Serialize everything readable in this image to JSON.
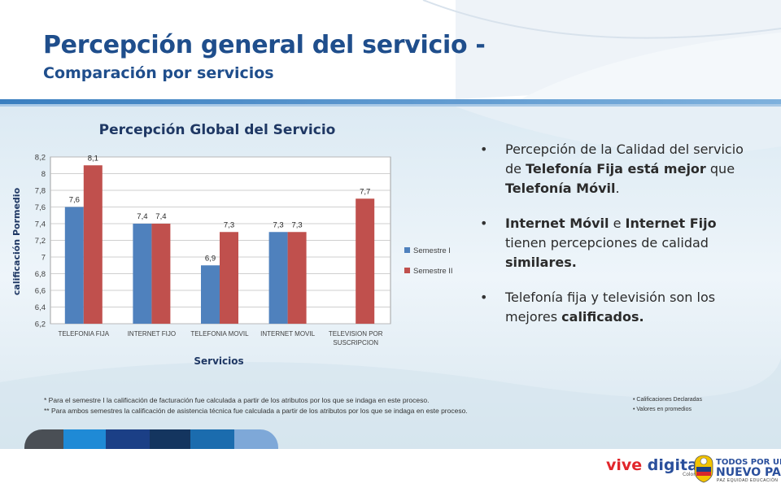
{
  "slide": {
    "title": "Percepción general del servicio -",
    "subtitle": "Comparación por servicios"
  },
  "chart_data": {
    "type": "bar",
    "title": "Percepción Global del Servicio",
    "xlabel": "Servicios",
    "ylabel": "calificación  Pormedio",
    "ylim": [
      6.2,
      8.2
    ],
    "yticks": [
      "6,2",
      "6,4",
      "6,6",
      "6,8",
      "7",
      "7,2",
      "7,4",
      "7,6",
      "7,8",
      "8",
      "8,2"
    ],
    "categories": [
      "TELEFONIA FIJA",
      "INTERNET FIJO",
      "TELEFONIA MOVIL",
      "INTERNET MOVIL",
      "TELEVISION POR SUSCRIPCION"
    ],
    "series": [
      {
        "name": "Semestre I",
        "color": "#4f81bd",
        "values": [
          7.6,
          7.4,
          6.9,
          7.3,
          null
        ],
        "labels": [
          "7,6",
          "7,4",
          "6,9",
          "7,3",
          ""
        ]
      },
      {
        "name": "Semestre II",
        "color": "#c0504d",
        "values": [
          8.1,
          7.4,
          7.3,
          7.3,
          7.7
        ],
        "labels": [
          "8,1",
          "7,4",
          "7,3",
          "7,3",
          "7,7"
        ]
      }
    ],
    "legend_position": "right",
    "grid": true
  },
  "bullets": [
    [
      {
        "t": "Percepción de la Calidad del servicio de ",
        "b": false
      },
      {
        "t": "Telefonía Fija está mejor",
        "b": true
      },
      {
        "t": " que ",
        "b": false
      },
      {
        "t": "Telefonía Móvil",
        "b": true
      },
      {
        "t": ".",
        "b": false
      }
    ],
    [
      {
        "t": "Internet Móvil",
        "b": true
      },
      {
        "t": " e ",
        "b": false
      },
      {
        "t": "Internet Fijo",
        "b": true
      },
      {
        "t": " tienen percepciones  de calidad ",
        "b": false
      },
      {
        "t": "similares.",
        "b": true
      }
    ],
    [
      {
        "t": "Telefonía fija y televisión son los mejores ",
        "b": false
      },
      {
        "t": "calificados.",
        "b": true
      }
    ]
  ],
  "footnotes": {
    "note1": "* Para el semestre I la calificación de facturación fue calculada a partir de los atributos por los que se indaga en este proceso.",
    "note2": "** Para ambos semestres la calificación de asistencia técnica fue calculada a partir de los atributos por los que se indaga en este proceso."
  },
  "side_notes": [
    "Calificaciones Declaradas",
    "Valores en promedios"
  ],
  "logos": {
    "vive": "vive",
    "digital": "digital",
    "colombia": "Colombia",
    "gov_line1": "TODOS POR UN",
    "gov_line2": "NUEVO PAÍS",
    "gov_line3": "PAZ  EQUIDAD  EDUCACIÓN"
  },
  "colors": {
    "title": "#1f4e8c",
    "semestre1": "#4f81bd",
    "semestre2": "#c0504d",
    "chart_title": "#1f3864",
    "panel_top": "#e8f1f7",
    "panel_bottom": "#d9e6ef"
  }
}
